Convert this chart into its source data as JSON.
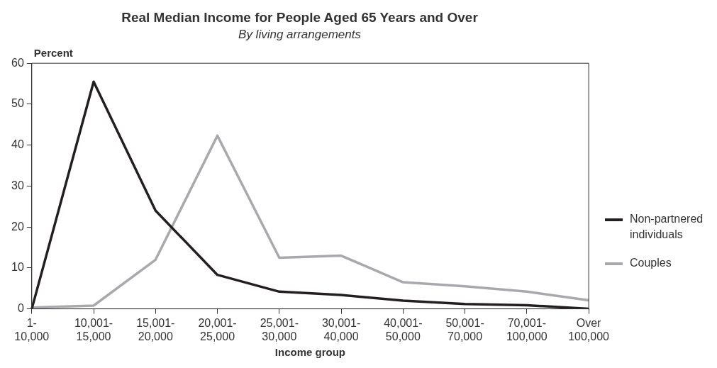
{
  "chart_data": {
    "type": "line",
    "title": "Real Median Income for People Aged 65 Years and Over",
    "subtitle": "By living arrangements",
    "xlabel": "Income group",
    "ylabel": "Percent",
    "categories": [
      "1- 10,000",
      "10,001- 15,000",
      "15,001- 20,000",
      "20,001- 25,000",
      "25,001- 30,000",
      "30,001- 40,000",
      "40,001- 50,000",
      "50,001- 70,000",
      "70,001- 100,000",
      "Over 100,000"
    ],
    "series": [
      {
        "name": "Non-partnered individuals",
        "color": "#231f20",
        "values": [
          0,
          55.5,
          24,
          8.3,
          4.2,
          3.4,
          2,
          1.2,
          0.9,
          0
        ]
      },
      {
        "name": "Couples",
        "color": "#a7a9ac",
        "values": [
          0.3,
          0.8,
          12,
          42.3,
          12.5,
          13,
          6.5,
          5.5,
          4.2,
          2.1
        ]
      }
    ],
    "ylim": [
      0,
      60
    ],
    "yticks": [
      0,
      10,
      20,
      30,
      40,
      50,
      60
    ],
    "grid": false,
    "legend": "right",
    "marker": "none",
    "line_style": "solid"
  }
}
